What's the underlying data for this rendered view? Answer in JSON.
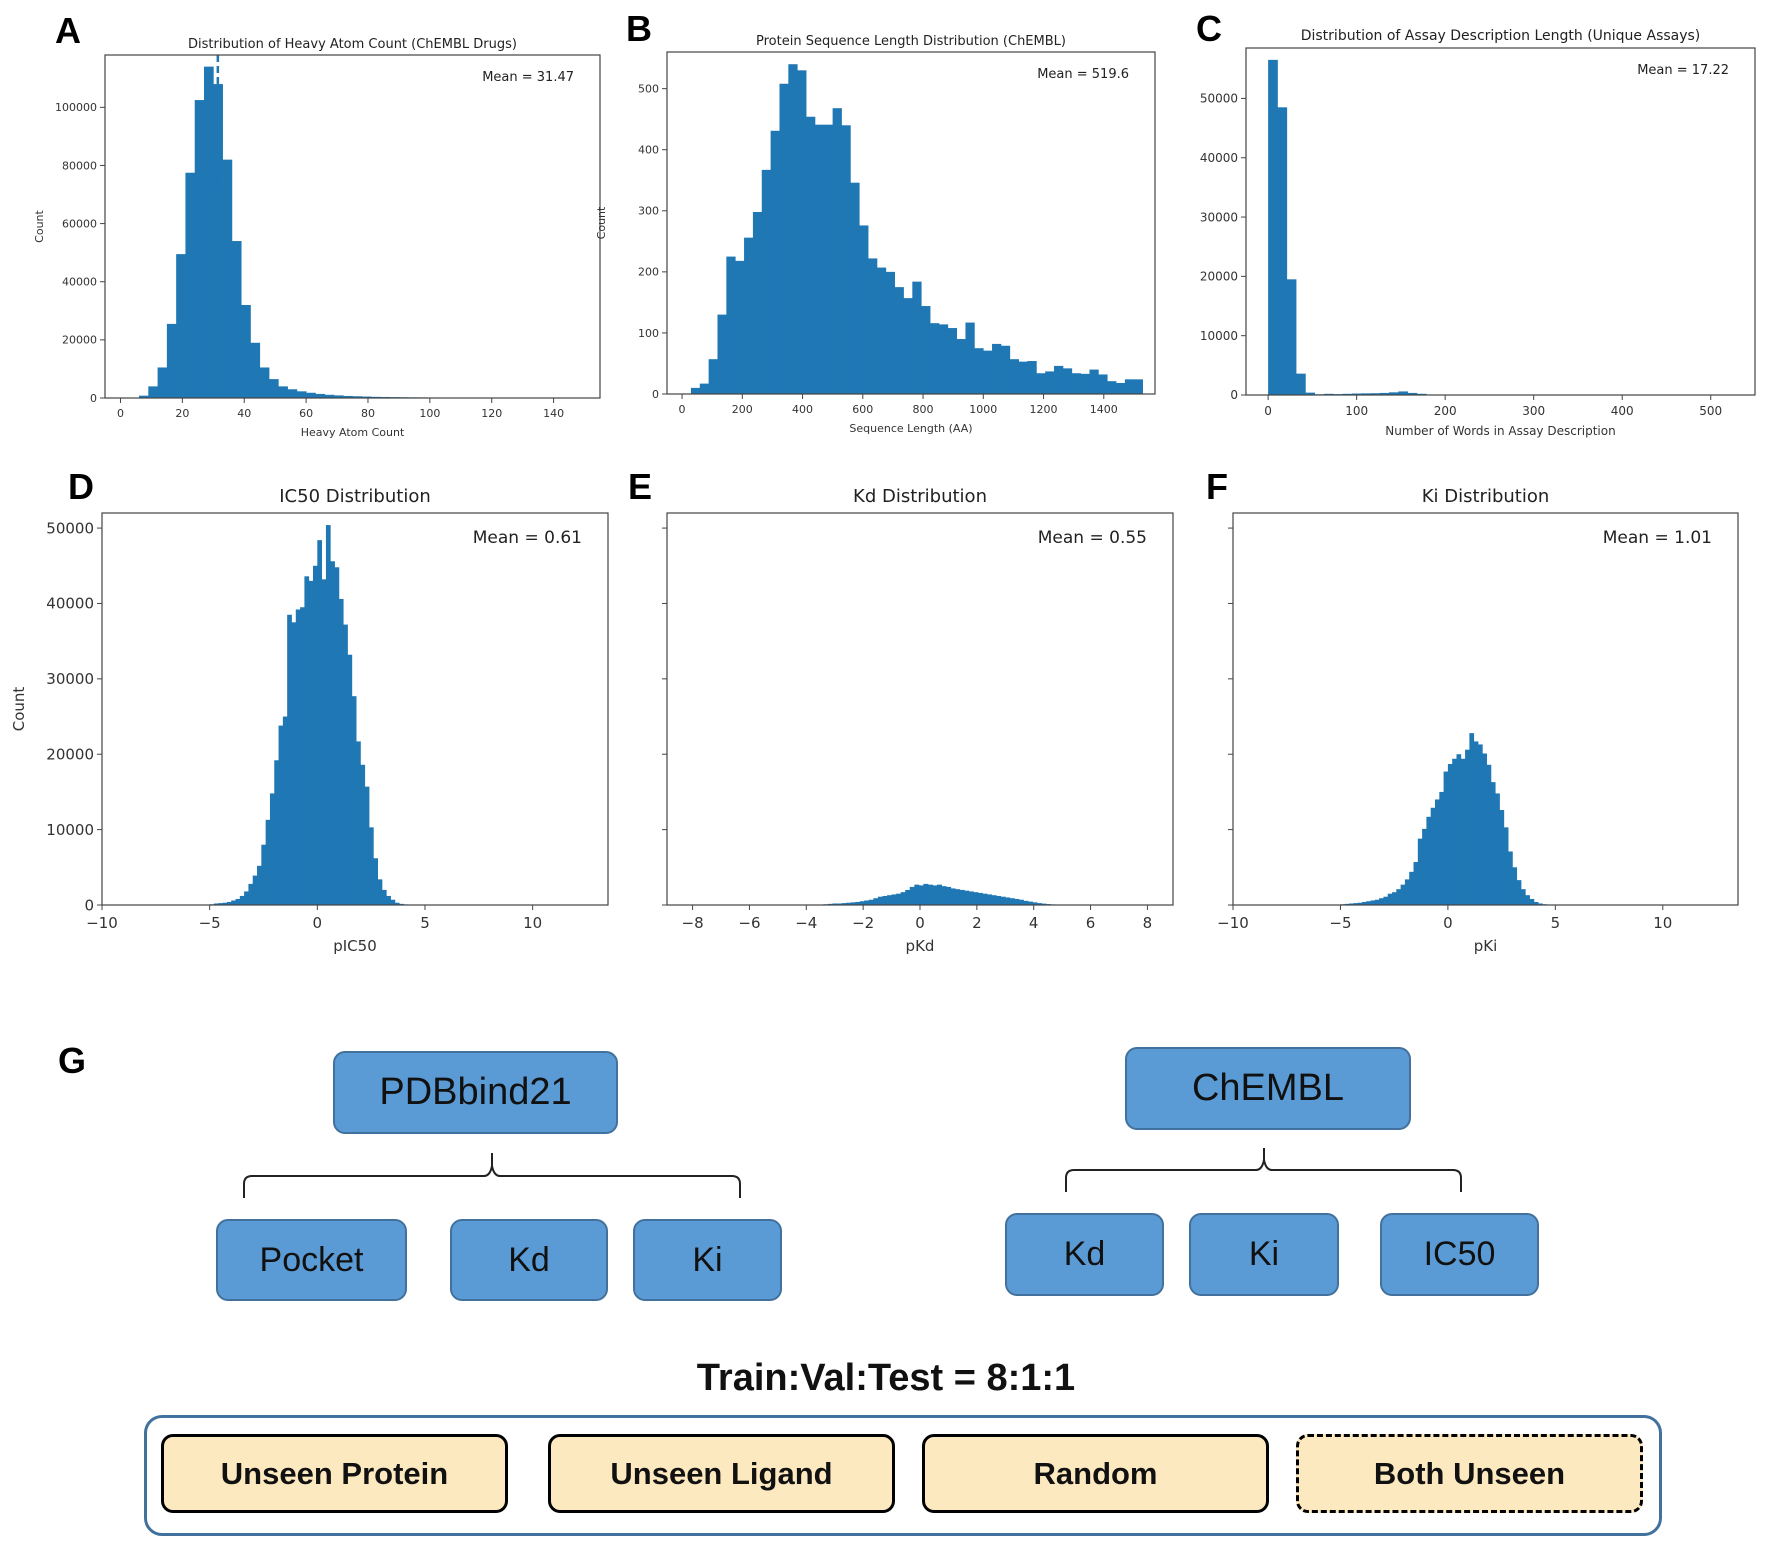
{
  "panels": {
    "labels": [
      "A",
      "B",
      "C",
      "D",
      "E",
      "F",
      "G"
    ]
  },
  "chart_data": [
    {
      "id": "A",
      "type": "bar",
      "title": "Distribution of Heavy Atom Count (ChEMBL Drugs)",
      "xlabel": "Heavy Atom Count",
      "ylabel": "Count",
      "annotation": "Mean = 31.47",
      "mean_line": 31.47,
      "xlim": [
        -5,
        155
      ],
      "ylim": [
        0,
        118000
      ],
      "xticks": [
        0,
        20,
        40,
        60,
        80,
        100,
        120,
        140
      ],
      "yticks": [
        0,
        20000,
        40000,
        60000,
        80000,
        100000
      ],
      "bin_start": 0,
      "bin_width": 3,
      "values": [
        0,
        100,
        800,
        4000,
        10500,
        25500,
        49500,
        77500,
        102500,
        114000,
        108000,
        82000,
        54000,
        32000,
        19000,
        10500,
        6500,
        4000,
        3000,
        2300,
        1800,
        1400,
        1100,
        900,
        700,
        600,
        500,
        400,
        350,
        300,
        260,
        220,
        200,
        180,
        160,
        140,
        120,
        110,
        100,
        90,
        80,
        70,
        60,
        60,
        50,
        50,
        40,
        40,
        30,
        30
      ]
    },
    {
      "id": "B",
      "type": "bar",
      "title": "Protein Sequence Length Distribution (ChEMBL)",
      "xlabel": "Sequence Length (AA)",
      "ylabel": "Count",
      "annotation": "Mean = 519.6",
      "xlim": [
        -50,
        1570
      ],
      "ylim": [
        0,
        560
      ],
      "xticks": [
        0,
        200,
        400,
        600,
        800,
        1000,
        1200,
        1400
      ],
      "yticks": [
        0,
        100,
        200,
        300,
        400,
        500
      ],
      "bin_start": 0,
      "bin_width": 29.4,
      "values": [
        0,
        10,
        17,
        57,
        130,
        225,
        218,
        256,
        298,
        367,
        431,
        508,
        540,
        530,
        454,
        441,
        441,
        468,
        440,
        346,
        276,
        222,
        207,
        200,
        175,
        157,
        184,
        144,
        116,
        114,
        108,
        90,
        117,
        75,
        71,
        82,
        79,
        57,
        53,
        54,
        34,
        37,
        46,
        42,
        34,
        33,
        40,
        32,
        21,
        18,
        24,
        24
      ]
    },
    {
      "id": "C",
      "type": "bar",
      "title": "Distribution of Assay Description Length (Unique Assays)",
      "xlabel": "Number of Words in Assay Description",
      "ylabel": "Count",
      "annotation": "Mean = 17.22",
      "xlim": [
        -25,
        550
      ],
      "ylim": [
        0,
        58500
      ],
      "xticks": [
        0,
        100,
        200,
        300,
        400,
        500
      ],
      "yticks": [
        0,
        10000,
        20000,
        30000,
        40000,
        50000
      ],
      "bin_start": 0,
      "bin_width": 10.5,
      "values": [
        56500,
        48500,
        19500,
        3600,
        400,
        120,
        200,
        150,
        200,
        250,
        280,
        300,
        350,
        450,
        600,
        350,
        200,
        80,
        40,
        20,
        10,
        5,
        5,
        5,
        5,
        5,
        5,
        5,
        5,
        5,
        5,
        5,
        5,
        5,
        5,
        5,
        5,
        5,
        5,
        5,
        5,
        5,
        5,
        5,
        5,
        5,
        5,
        5,
        5
      ]
    },
    {
      "id": "D",
      "type": "bar",
      "title": "IC50 Distribution",
      "xlabel": "pIC50",
      "ylabel": "Count",
      "annotation": "Mean = 0.61",
      "xlim": [
        -10,
        13.5
      ],
      "ylim": [
        0,
        52000
      ],
      "xticks": [
        -10,
        -5,
        0,
        5,
        10
      ],
      "xtick_labels": [
        "−10",
        "−5",
        "0",
        "5",
        "10"
      ],
      "yticks": [
        0,
        10000,
        20000,
        30000,
        40000,
        50000
      ],
      "bin_start": -5,
      "bin_width": 0.2,
      "values": [
        100,
        200,
        250,
        300,
        400,
        600,
        800,
        1200,
        1800,
        2800,
        3900,
        5200,
        8000,
        11300,
        14800,
        19200,
        23800,
        25000,
        38500,
        37500,
        39200,
        39500,
        43600,
        43000,
        45000,
        48400,
        43200,
        50400,
        45600,
        44800,
        40600,
        37200,
        33200,
        27700,
        21700,
        18600,
        15700,
        10300,
        6200,
        3400,
        2000,
        1200,
        700,
        300,
        150,
        80,
        40,
        20,
        10,
        5,
        5
      ]
    },
    {
      "id": "E",
      "type": "bar",
      "title": "Kd Distribution",
      "xlabel": "pKd",
      "ylabel": "",
      "annotation": "Mean = 0.55",
      "xlim": [
        -8.9,
        8.9
      ],
      "ylim": [
        0,
        52000
      ],
      "xticks": [
        -8,
        -6,
        -4,
        -2,
        0,
        2,
        4,
        6,
        8
      ],
      "xtick_labels": [
        "−8",
        "−6",
        "−4",
        "−2",
        "0",
        "2",
        "4",
        "6",
        "8"
      ],
      "yticks": [
        0,
        10000,
        20000,
        30000,
        40000,
        50000
      ],
      "ytick_labels_visible": false,
      "bin_start": -3.4,
      "bin_width": 0.16,
      "values": [
        100,
        150,
        200,
        200,
        250,
        300,
        350,
        400,
        500,
        600,
        700,
        900,
        1100,
        1200,
        1300,
        1400,
        1500,
        1700,
        2000,
        2400,
        2700,
        2600,
        2800,
        2700,
        2600,
        2700,
        2500,
        2400,
        2200,
        2100,
        2000,
        1900,
        1800,
        1700,
        1600,
        1500,
        1400,
        1300,
        1200,
        1100,
        1000,
        900,
        800,
        700,
        550,
        450,
        350,
        250,
        180,
        120,
        80,
        50
      ]
    },
    {
      "id": "F",
      "type": "bar",
      "title": "Ki Distribution",
      "xlabel": "pKi",
      "ylabel": "",
      "annotation": "Mean = 1.01",
      "xlim": [
        -10,
        13.5
      ],
      "ylim": [
        0,
        52000
      ],
      "xticks": [
        -10,
        -5,
        0,
        5,
        10
      ],
      "xtick_labels": [
        "−10",
        "−5",
        "0",
        "5",
        "10"
      ],
      "yticks": [
        0,
        10000,
        20000,
        30000,
        40000,
        50000
      ],
      "ytick_labels_visible": false,
      "bin_start": -5,
      "bin_width": 0.2,
      "values": [
        100,
        150,
        200,
        250,
        300,
        400,
        500,
        600,
        700,
        900,
        1100,
        1500,
        1700,
        2100,
        2700,
        3400,
        4400,
        5700,
        8800,
        10100,
        11700,
        12900,
        14000,
        15000,
        17700,
        18700,
        19400,
        20000,
        19400,
        20600,
        22800,
        21700,
        21300,
        20100,
        18600,
        16300,
        14800,
        12600,
        10300,
        7100,
        5000,
        3300,
        2100,
        1300,
        800,
        400,
        200,
        100,
        50,
        20
      ]
    }
  ],
  "diagram": {
    "groups": [
      {
        "root": "PDBbind21",
        "children": [
          "Pocket",
          "Kd",
          "Ki"
        ]
      },
      {
        "root": "ChEMBL",
        "children": [
          "Kd",
          "Ki",
          "IC50"
        ]
      }
    ],
    "split_title": "Train:Val:Test = 8:1:1",
    "splits": [
      {
        "label": "Unseen Protein",
        "dashed": false
      },
      {
        "label": "Unseen Ligand",
        "dashed": false
      },
      {
        "label": "Random",
        "dashed": false
      },
      {
        "label": "Both Unseen",
        "dashed": true
      }
    ]
  },
  "colors": {
    "bar": "#1f77b4",
    "box_fill": "#5b9bd5",
    "box_border": "#41719c",
    "split_fill": "#fde9c0"
  }
}
